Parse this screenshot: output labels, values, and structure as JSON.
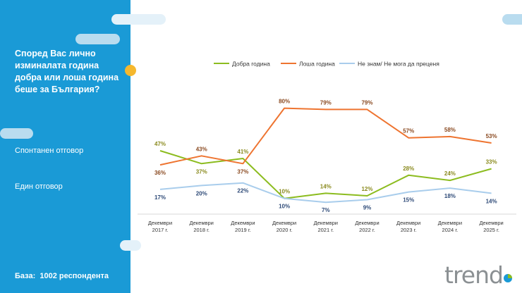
{
  "sidebar": {
    "question": "Според Вас лично изминалата година добра или лоша година беше за България?",
    "answer_type_1": "Спонтанен отговор",
    "answer_type_2": "Един отговор",
    "base_label": "База:",
    "base_value": "1002 респондента"
  },
  "logo_text": "trend",
  "colors": {
    "sidebar": "#1a9ad6",
    "good": "#8cbc1f",
    "bad": "#ee7430",
    "dont_know": "#a9cdec",
    "good_label": "#8a8a1e",
    "bad_label": "#8a4a21",
    "dk_label": "#2f4b78"
  },
  "chart_data": {
    "type": "line",
    "categories": [
      [
        "Декември",
        "2017 г."
      ],
      [
        "Декември",
        "2018 г."
      ],
      [
        "Декември",
        "2019 г."
      ],
      [
        "Декември",
        "2020 г."
      ],
      [
        "Декември",
        "2021 г."
      ],
      [
        "Декември",
        "2022 г."
      ],
      [
        "Декември",
        "2023 г."
      ],
      [
        "Декември",
        "2024 г."
      ],
      [
        "Декември",
        "2025 г."
      ]
    ],
    "series": [
      {
        "name": "Добра година",
        "values": [
          47,
          37,
          41,
          10,
          14,
          12,
          28,
          24,
          33
        ],
        "labels": [
          "47%",
          "37%",
          "41%",
          "10%",
          "14%",
          "12%",
          "28%",
          "24%",
          "33%"
        ],
        "label_pos": [
          "above",
          "below",
          "above",
          "above",
          "above",
          "above",
          "above",
          "above",
          "above"
        ]
      },
      {
        "name": "Лоша година",
        "values": [
          36,
          43,
          37,
          80,
          79,
          79,
          57,
          58,
          53
        ],
        "labels": [
          "36%",
          "43%",
          "37%",
          "80%",
          "79%",
          "79%",
          "57%",
          "58%",
          "53%"
        ],
        "label_pos": [
          "below",
          "above",
          "below",
          "above",
          "above",
          "above",
          "above",
          "above",
          "above"
        ]
      },
      {
        "name": "Не знам/ Не мога да преценя",
        "values": [
          17,
          20,
          22,
          10,
          7,
          9,
          15,
          18,
          14
        ],
        "labels": [
          "17%",
          "20%",
          "22%",
          "10%",
          "7%",
          "9%",
          "15%",
          "18%",
          "14%"
        ],
        "label_pos": [
          "below",
          "below",
          "below",
          "below",
          "below",
          "below",
          "below",
          "below",
          "below"
        ]
      }
    ],
    "ylim": [
      0,
      100
    ],
    "grid": false,
    "legend_placement": "top"
  }
}
